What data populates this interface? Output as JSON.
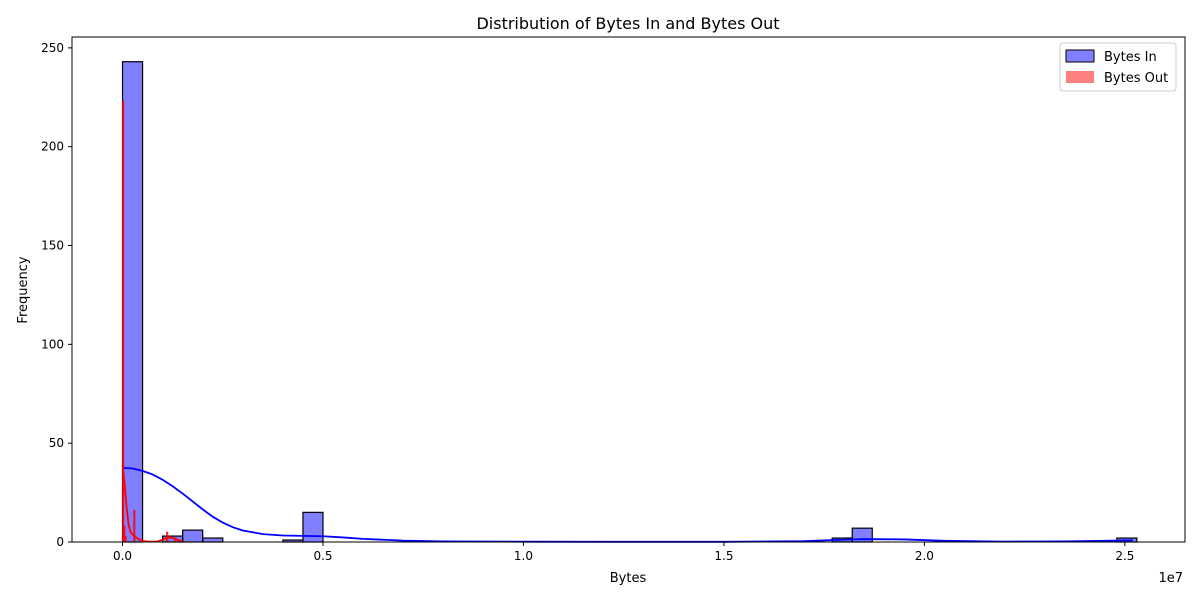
{
  "chart_data": {
    "type": "histogram",
    "title": "Distribution of Bytes In and Bytes Out",
    "xlabel": "Bytes",
    "ylabel": "Frequency",
    "x_offset_label": "1e7",
    "xlim": [
      -1260000,
      26500000
    ],
    "ylim": [
      0,
      255.5
    ],
    "x_ticks": [
      0,
      5000000,
      10000000,
      15000000,
      20000000,
      25000000
    ],
    "x_tick_labels": [
      "0.0",
      "0.5",
      "1.0",
      "1.5",
      "2.0",
      "2.5"
    ],
    "y_ticks": [
      0,
      50,
      100,
      150,
      200,
      250
    ],
    "y_tick_labels": [
      "0",
      "50",
      "100",
      "150",
      "200",
      "250"
    ],
    "grid": false,
    "legend_position": "top-right",
    "series": [
      {
        "name": "Bytes In",
        "color": "#0000ff",
        "fill_opacity": 0.5,
        "edge_color": "#000000",
        "bins": [
          {
            "x0": 0,
            "x1": 500000,
            "count": 243
          },
          {
            "x0": 1000000,
            "x1": 1500000,
            "count": 3
          },
          {
            "x0": 1500000,
            "x1": 2000000,
            "count": 6
          },
          {
            "x0": 2000000,
            "x1": 2500000,
            "count": 2
          },
          {
            "x0": 4000000,
            "x1": 4500000,
            "count": 1
          },
          {
            "x0": 4500000,
            "x1": 5000000,
            "count": 15
          },
          {
            "x0": 17700000,
            "x1": 18200000,
            "count": 2
          },
          {
            "x0": 18200000,
            "x1": 18700000,
            "count": 7
          },
          {
            "x0": 24800000,
            "x1": 25300000,
            "count": 2
          }
        ],
        "kde": {
          "x": [
            0,
            250000,
            500000,
            750000,
            1000000,
            1250000,
            1500000,
            1750000,
            2000000,
            2250000,
            2500000,
            2750000,
            3000000,
            3500000,
            4000000,
            4500000,
            5000000,
            5500000,
            6000000,
            7000000,
            8000000,
            10000000,
            12000000,
            15000000,
            17000000,
            18000000,
            18500000,
            19500000,
            20500000,
            22000000,
            23500000,
            24500000,
            25200000
          ],
          "y": [
            37.5,
            37.2,
            36.0,
            34.2,
            31.5,
            28.2,
            24.5,
            20.5,
            16.5,
            12.8,
            9.8,
            7.5,
            5.8,
            4.0,
            3.3,
            3.1,
            2.9,
            2.3,
            1.6,
            0.7,
            0.3,
            0.15,
            0.1,
            0.1,
            0.4,
            1.2,
            1.5,
            1.3,
            0.6,
            0.2,
            0.3,
            0.6,
            0.9
          ]
        }
      },
      {
        "name": "Bytes Out",
        "color": "#ff0000",
        "fill_opacity": 0.5,
        "edge_color": "#ff0000",
        "bins": [
          {
            "x0": 0,
            "x1": 30000,
            "count": 223
          },
          {
            "x0": 30000,
            "x1": 60000,
            "count": 8
          },
          {
            "x0": 60000,
            "x1": 90000,
            "count": 3
          },
          {
            "x0": 280000,
            "x1": 310000,
            "count": 16
          },
          {
            "x0": 1100000,
            "x1": 1130000,
            "count": 5
          },
          {
            "x0": 1300000,
            "x1": 1330000,
            "count": 2
          }
        ],
        "kde": {
          "x": [
            0,
            50000,
            100000,
            150000,
            200000,
            250000,
            300000,
            350000,
            400000,
            500000,
            600000,
            700000,
            800000,
            900000,
            1000000,
            1100000,
            1200000,
            1300000,
            1400000,
            1500000
          ],
          "y": [
            39.0,
            30.0,
            18.0,
            9.0,
            5.0,
            3.8,
            3.0,
            2.2,
            1.4,
            0.6,
            0.3,
            0.2,
            0.2,
            0.4,
            1.2,
            2.2,
            2.3,
            1.8,
            0.9,
            0.3
          ]
        }
      }
    ]
  }
}
